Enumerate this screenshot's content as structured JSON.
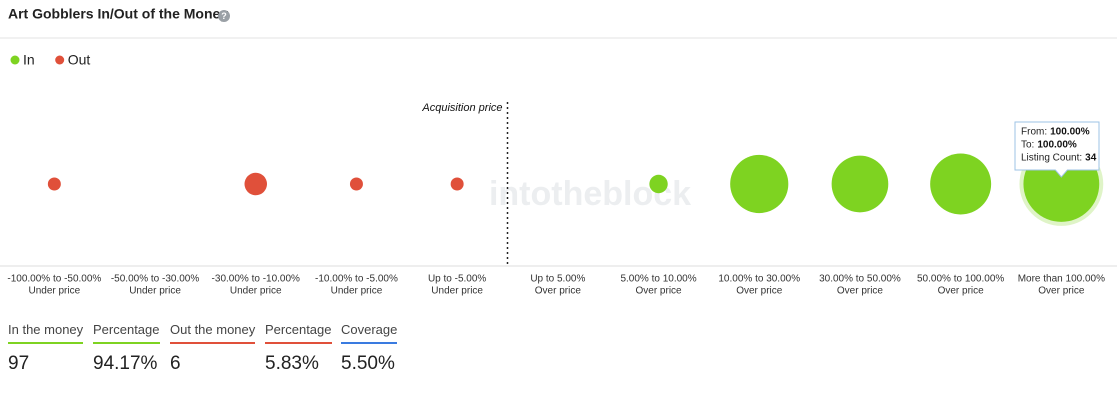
{
  "header": {
    "title": "Art Gobblers In/Out of the Money"
  },
  "chart_data": {
    "type": "bubble",
    "categories": [
      "-100.00% to -50.00%",
      "-50.00% to -30.00%",
      "-30.00% to -10.00%",
      "-10.00% to -5.00%",
      "Up to -5.00%",
      "Up to 5.00%",
      "5.00% to 10.00%",
      "10.00% to 30.00%",
      "30.00% to 50.00%",
      "50.00% to 100.00%",
      "More than 100.00%"
    ],
    "category_sublabels": [
      "Under price",
      "Under price",
      "Under price",
      "Under price",
      "Under price",
      "Over price",
      "Over price",
      "Over price",
      "Over price",
      "Over price",
      "Over price"
    ],
    "series": [
      {
        "name": "In",
        "color": "#7ed321",
        "values": [
          null,
          null,
          null,
          null,
          null,
          null,
          2,
          20,
          19,
          22,
          34
        ]
      },
      {
        "name": "Out",
        "color": "#e0503a",
        "values": [
          1,
          null,
          3,
          1,
          1,
          null,
          null,
          null,
          null,
          null,
          null
        ]
      }
    ],
    "annotation": "Acquisition price",
    "watermark": "intotheblock",
    "tooltip": {
      "from_label": "From:",
      "from": "100.00%",
      "to_label": "To:",
      "to": "100.00%",
      "count_label": "Listing Count:"
    }
  },
  "summary": [
    {
      "label": "In the money",
      "value": "97",
      "color": "#7ed321"
    },
    {
      "label": "Percentage",
      "value": "94.17%",
      "color": "#7ed321"
    },
    {
      "label": "Out the money",
      "value": "6",
      "color": "#e0503a"
    },
    {
      "label": "Percentage",
      "value": "5.83%",
      "color": "#e0503a"
    },
    {
      "label": "Coverage",
      "value": "5.50%",
      "color": "#3a7be0"
    }
  ]
}
